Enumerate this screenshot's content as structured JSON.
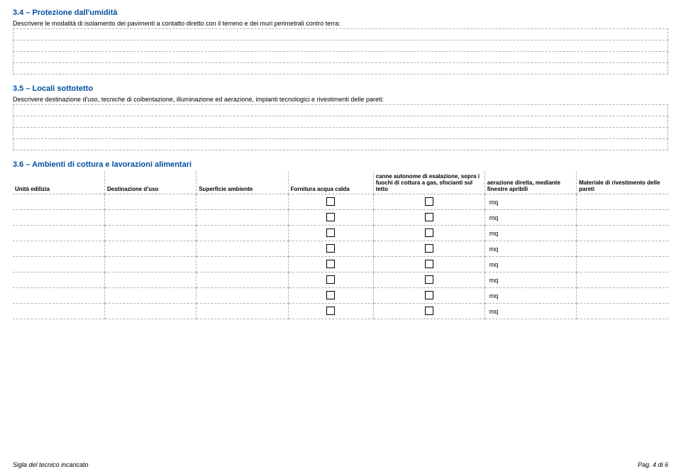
{
  "section1": {
    "heading": "3.4 – Protezione dall'umidità",
    "description": "Descrivere le modalità di isolamento dei pavimenti a contatto diretto con il terreno e dei muri perimetrali contro terra:",
    "row_count": 4
  },
  "section2": {
    "heading": "3.5 – Locali sottotetto",
    "description": "Descrivere destinazione d'uso, tecniche di coibentazione, illuminazione ed aerazione, impianti tecnologici e rivestimenti delle pareti:",
    "row_count": 4
  },
  "section3": {
    "heading": "3.6 – Ambienti di cottura e lavorazioni alimentari",
    "columns": [
      "Unità edilizia",
      "Destinazione d'uso",
      "Superficie ambiente",
      "Fornitura acqua calda",
      "canne autonome di esalazione, sopra i fuochi di cottura a gas, sfocianti sul tetto",
      "aerazione diretta, mediante finestre apribili",
      "Materiale di rivestimento delle pareti"
    ],
    "col_widths": [
      "14%",
      "14%",
      "14%",
      "13%",
      "17%",
      "14%",
      "14%"
    ],
    "mq_label": "mq",
    "row_count": 8
  },
  "footer": {
    "left": "Sigla del tecnico incaricato",
    "right": "Pag. 4 di 6"
  },
  "colors": {
    "heading": "#0050a0",
    "border": "#b0b0b0",
    "text": "#000000",
    "bg": "#ffffff"
  }
}
